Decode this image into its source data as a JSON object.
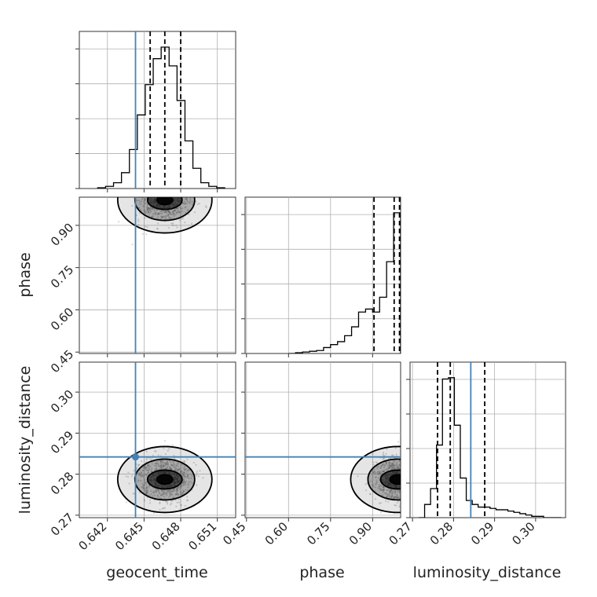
{
  "chart_data": {
    "type": "corner",
    "parameters": [
      "geocent_time",
      "phase",
      "luminosity_distance"
    ],
    "axis_labels": {
      "x": [
        "geocent_time",
        "phase",
        "luminosity_distance"
      ],
      "y": [
        "",
        "phase",
        "luminosity_distance"
      ]
    },
    "ranges": {
      "geocent_time": [
        0.6397,
        0.6525
      ],
      "phase": [
        0.445,
        1.0
      ],
      "luminosity_distance": [
        0.2694,
        0.3073
      ]
    },
    "ticks": {
      "geocent_time": {
        "values": [
          0.642,
          0.645,
          0.648,
          0.651
        ],
        "labels": [
          "0.642",
          "0.645",
          "0.648",
          "0.651"
        ]
      },
      "phase": {
        "values": [
          0.45,
          0.6,
          0.75,
          0.9
        ],
        "labels": [
          "0.45",
          "0.60",
          "0.75",
          "0.90"
        ]
      },
      "luminosity_distance": {
        "values": [
          0.27,
          0.28,
          0.29,
          0.3
        ],
        "labels": [
          "0.27",
          "0.28",
          "0.29",
          "0.30"
        ]
      }
    },
    "truths": {
      "geocent_time": 0.6443,
      "phase": null,
      "luminosity_distance": 0.2842
    },
    "truth_color": "#4682b4",
    "quantiles": {
      "geocent_time": [
        0.6455,
        0.6467,
        0.648
      ],
      "phase": [
        0.905,
        0.977,
        0.996
      ],
      "luminosity_distance": [
        0.2761,
        0.2792,
        0.2876
      ]
    },
    "histograms": {
      "geocent_time": {
        "edges": [
          0.6412,
          0.64185,
          0.6425,
          0.64315,
          0.6438,
          0.64445,
          0.6451,
          0.64575,
          0.6464,
          0.64705,
          0.6477,
          0.64835,
          0.649,
          0.64965,
          0.6503,
          0.65095,
          0.6516
        ],
        "counts": [
          0.5,
          1.5,
          4,
          11,
          27,
          51,
          72,
          90,
          98,
          85,
          61,
          33,
          14,
          4,
          1.5,
          0.5
        ]
      },
      "phase": {
        "edges": [
          0.6,
          0.625,
          0.65,
          0.675,
          0.7,
          0.725,
          0.75,
          0.775,
          0.8,
          0.825,
          0.85,
          0.875,
          0.9,
          0.925,
          0.95,
          0.975,
          1.0
        ],
        "counts": [
          0,
          0.5,
          1,
          1.5,
          2,
          4,
          6,
          8,
          12,
          18,
          28,
          30,
          28,
          38,
          62,
          95
        ]
      },
      "luminosity_distance": {
        "edges": [
          0.2715,
          0.27295,
          0.2744,
          0.27585,
          0.2773,
          0.27875,
          0.2802,
          0.28165,
          0.2831,
          0.28455,
          0.286,
          0.28745,
          0.2889,
          0.29035,
          0.2918,
          0.29325,
          0.2947,
          0.29615,
          0.2976,
          0.29905,
          0.3005,
          0.30195,
          0.3034,
          0.30485,
          0.3063
        ],
        "counts": [
          0,
          10,
          22,
          55,
          105,
          106,
          70,
          30,
          13,
          10,
          8,
          8,
          7,
          6,
          6,
          5,
          4,
          3,
          2,
          1,
          1,
          0,
          0,
          0
        ]
      }
    },
    "density_peaks": [
      {
        "x_param": "geocent_time",
        "y_param": "phase",
        "x": 0.6467,
        "y": 0.99
      },
      {
        "x_param": "geocent_time",
        "y_param": "luminosity_distance",
        "x": 0.6467,
        "y": 0.2787
      },
      {
        "x_param": "phase",
        "y_param": "luminosity_distance",
        "x": 0.99,
        "y": 0.2787
      }
    ],
    "grid": true,
    "contour_color": "#000000",
    "hist_color": "#000000",
    "quantile_line": "dashed"
  }
}
